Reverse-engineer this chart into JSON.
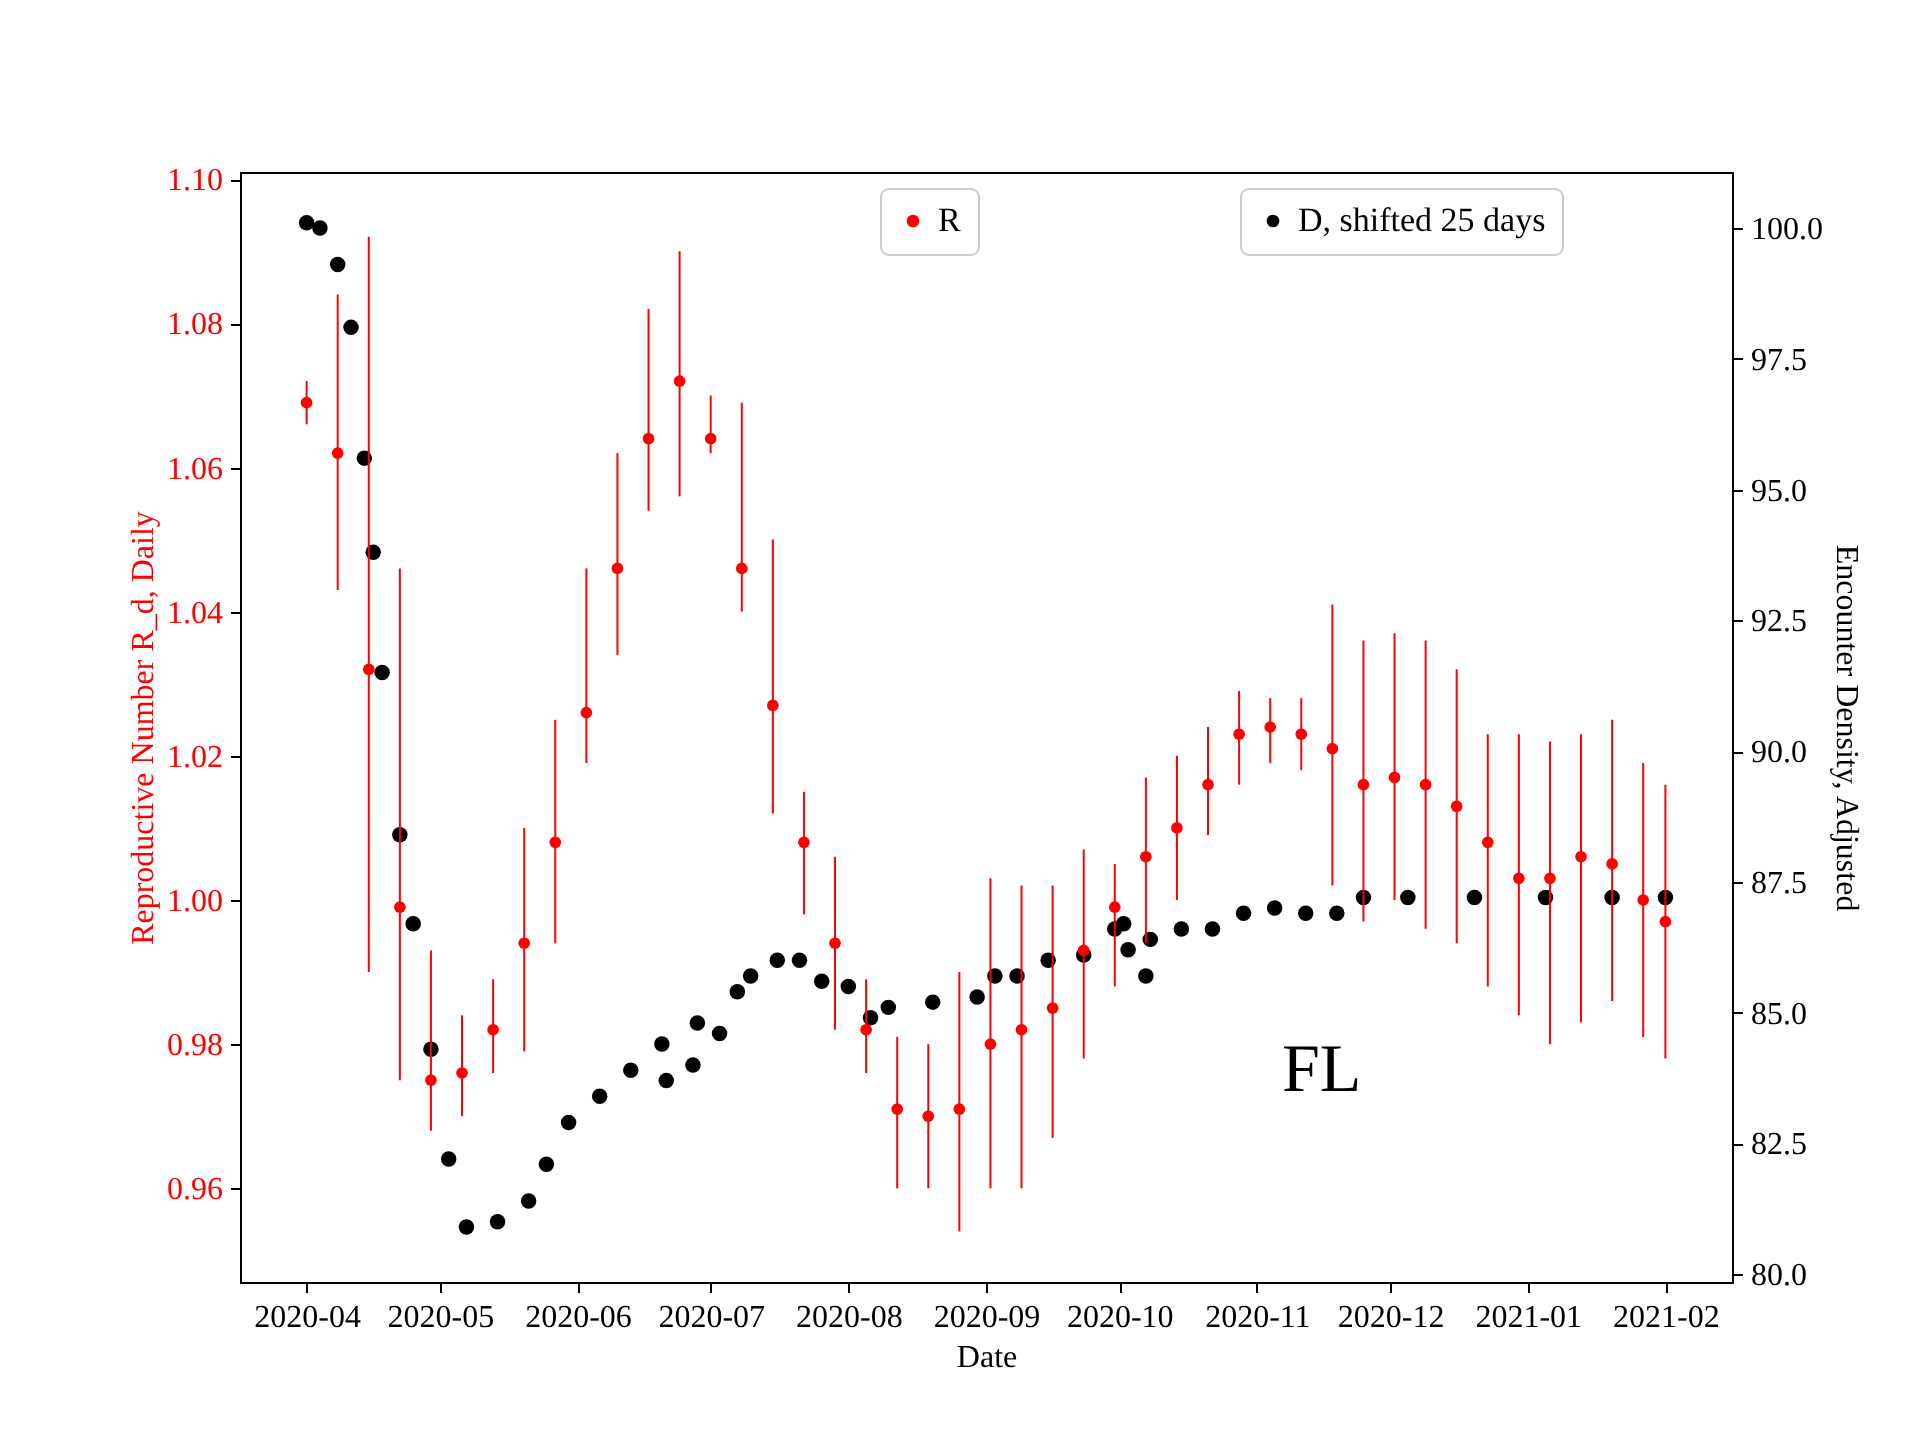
{
  "chart_data": {
    "type": "scatter",
    "xlabel": "Date",
    "ylabel": "Reproductive Number R_d, Daily",
    "y2label": "Encounter Density, Adjusted",
    "annotations": [
      "FL"
    ],
    "xlim": [
      "2020-03-17",
      "2021-02-16"
    ],
    "xticks": [
      "2020-04",
      "2020-05",
      "2020-06",
      "2020-07",
      "2020-08",
      "2020-09",
      "2020-10",
      "2020-11",
      "2020-12",
      "2021-01",
      "2021-02"
    ],
    "ylim": [
      0.947,
      1.101
    ],
    "yticks": [
      {
        "value": 0.96,
        "label": "0.96"
      },
      {
        "value": 0.98,
        "label": "0.98"
      },
      {
        "value": 1.0,
        "label": "1.00"
      },
      {
        "value": 1.02,
        "label": "1.02"
      },
      {
        "value": 1.04,
        "label": "1.04"
      },
      {
        "value": 1.06,
        "label": "1.06"
      },
      {
        "value": 1.08,
        "label": "1.08"
      },
      {
        "value": 1.1,
        "label": "1.10"
      }
    ],
    "y2lim": [
      79.85,
      101.07
    ],
    "y2ticks": [
      {
        "value": 80,
        "label": "80.0"
      },
      {
        "value": 82.5,
        "label": "82.5"
      },
      {
        "value": 85,
        "label": "85.0"
      },
      {
        "value": 87.5,
        "label": "87.5"
      },
      {
        "value": 90,
        "label": "90.0"
      },
      {
        "value": 92.5,
        "label": "92.5"
      },
      {
        "value": 95,
        "label": "95.0"
      },
      {
        "value": 97.5,
        "label": "97.5"
      },
      {
        "value": 100,
        "label": "100.0"
      }
    ],
    "legend": "top right",
    "marker": "circle",
    "series": [
      {
        "name": "R",
        "color": "#ff0000",
        "x": [
          "2020-04-01",
          "2020-04-08",
          "2020-04-15",
          "2020-04-22",
          "2020-04-29",
          "2020-05-06",
          "2020-05-13",
          "2020-05-20",
          "2020-05-27",
          "2020-06-03",
          "2020-06-10",
          "2020-06-17",
          "2020-06-24",
          "2020-07-01",
          "2020-07-08",
          "2020-07-15",
          "2020-07-22",
          "2020-07-29",
          "2020-08-05",
          "2020-08-12",
          "2020-08-19",
          "2020-08-26",
          "2020-09-02",
          "2020-09-09",
          "2020-09-16",
          "2020-09-23",
          "2020-09-30",
          "2020-10-07",
          "2020-10-14",
          "2020-10-21",
          "2020-10-28",
          "2020-11-04",
          "2020-11-11",
          "2020-11-18",
          "2020-11-25",
          "2020-12-02",
          "2020-12-09",
          "2020-12-16",
          "2020-12-23",
          "2020-12-30",
          "2021-01-06",
          "2021-01-13",
          "2021-01-20",
          "2021-01-27",
          "2021-02-01"
        ],
        "values": [
          1.069,
          1.062,
          1.032,
          0.999,
          0.975,
          0.976,
          0.982,
          0.994,
          1.008,
          1.026,
          1.046,
          1.064,
          1.072,
          1.064,
          1.046,
          1.027,
          1.008,
          0.994,
          0.982,
          0.971,
          0.97,
          0.971,
          0.98,
          0.982,
          0.985,
          0.993,
          0.999,
          1.006,
          1.01,
          1.016,
          1.023,
          1.024,
          1.023,
          1.021,
          1.016,
          1.017,
          1.016,
          1.013,
          1.008,
          1.003,
          1.003,
          1.006,
          1.005,
          1.0,
          0.997
        ],
        "errors": [
          [
            1.066,
            1.072
          ],
          [
            1.043,
            1.084
          ],
          [
            0.99,
            1.092
          ],
          [
            0.975,
            1.046
          ],
          [
            0.968,
            0.993
          ],
          [
            0.97,
            0.984
          ],
          [
            0.976,
            0.989
          ],
          [
            0.979,
            1.01
          ],
          [
            0.994,
            1.025
          ],
          [
            1.019,
            1.046
          ],
          [
            1.034,
            1.062
          ],
          [
            1.054,
            1.082
          ],
          [
            1.056,
            1.09
          ],
          [
            1.062,
            1.07
          ],
          [
            1.04,
            1.069
          ],
          [
            1.012,
            1.05
          ],
          [
            0.998,
            1.015
          ],
          [
            0.982,
            1.006
          ],
          [
            0.976,
            0.989
          ],
          [
            0.96,
            0.981
          ],
          [
            0.96,
            0.98
          ],
          [
            0.954,
            0.99
          ],
          [
            0.96,
            1.003
          ],
          [
            0.96,
            1.002
          ],
          [
            0.967,
            1.002
          ],
          [
            0.978,
            1.007
          ],
          [
            0.988,
            1.005
          ],
          [
            0.994,
            1.017
          ],
          [
            1.0,
            1.02
          ],
          [
            1.009,
            1.024
          ],
          [
            1.016,
            1.029
          ],
          [
            1.019,
            1.028
          ],
          [
            1.018,
            1.028
          ],
          [
            1.002,
            1.041
          ],
          [
            0.997,
            1.036
          ],
          [
            1.0,
            1.037
          ],
          [
            0.996,
            1.036
          ],
          [
            0.994,
            1.032
          ],
          [
            0.988,
            1.023
          ],
          [
            0.984,
            1.023
          ],
          [
            0.98,
            1.022
          ],
          [
            0.983,
            1.023
          ],
          [
            0.986,
            1.025
          ],
          [
            0.981,
            1.019
          ],
          [
            0.978,
            1.016
          ]
        ]
      },
      {
        "name": "D, shifted 25 days",
        "axis": "y2",
        "color": "#000000",
        "x": [
          "2020-04-01",
          "2020-04-04",
          "2020-04-08",
          "2020-04-11",
          "2020-04-14",
          "2020-04-16",
          "2020-04-18",
          "2020-04-22",
          "2020-04-25",
          "2020-04-29",
          "2020-05-03",
          "2020-05-07",
          "2020-05-14",
          "2020-05-21",
          "2020-05-25",
          "2020-05-30",
          "2020-06-06",
          "2020-06-13",
          "2020-06-20",
          "2020-06-21",
          "2020-06-27",
          "2020-06-28",
          "2020-07-03",
          "2020-07-07",
          "2020-07-10",
          "2020-07-16",
          "2020-07-21",
          "2020-07-26",
          "2020-08-01",
          "2020-08-06",
          "2020-08-10",
          "2020-08-20",
          "2020-08-30",
          "2020-09-03",
          "2020-09-08",
          "2020-09-15",
          "2020-09-23",
          "2020-09-30",
          "2020-10-02",
          "2020-10-03",
          "2020-10-07",
          "2020-10-08",
          "2020-10-15",
          "2020-10-22",
          "2020-10-29",
          "2020-11-05",
          "2020-11-12",
          "2020-11-19",
          "2020-11-25",
          "2020-12-05",
          "2020-12-20",
          "2021-01-05",
          "2021-01-20",
          "2021-02-01"
        ],
        "values": [
          100.1,
          100.0,
          99.3,
          98.1,
          95.6,
          93.8,
          91.5,
          88.4,
          86.7,
          84.3,
          82.2,
          80.9,
          81.0,
          81.4,
          82.1,
          82.9,
          83.4,
          83.9,
          84.4,
          83.7,
          84.0,
          84.8,
          84.6,
          85.4,
          85.7,
          86.0,
          86.0,
          85.6,
          85.5,
          84.9,
          85.1,
          85.2,
          85.3,
          85.7,
          85.7,
          86.0,
          86.1,
          86.6,
          86.7,
          86.2,
          85.7,
          86.4,
          86.6,
          86.6,
          86.9,
          87.0,
          86.9,
          86.9,
          87.2,
          87.2,
          87.2,
          87.2,
          87.2,
          87.2
        ]
      }
    ]
  }
}
